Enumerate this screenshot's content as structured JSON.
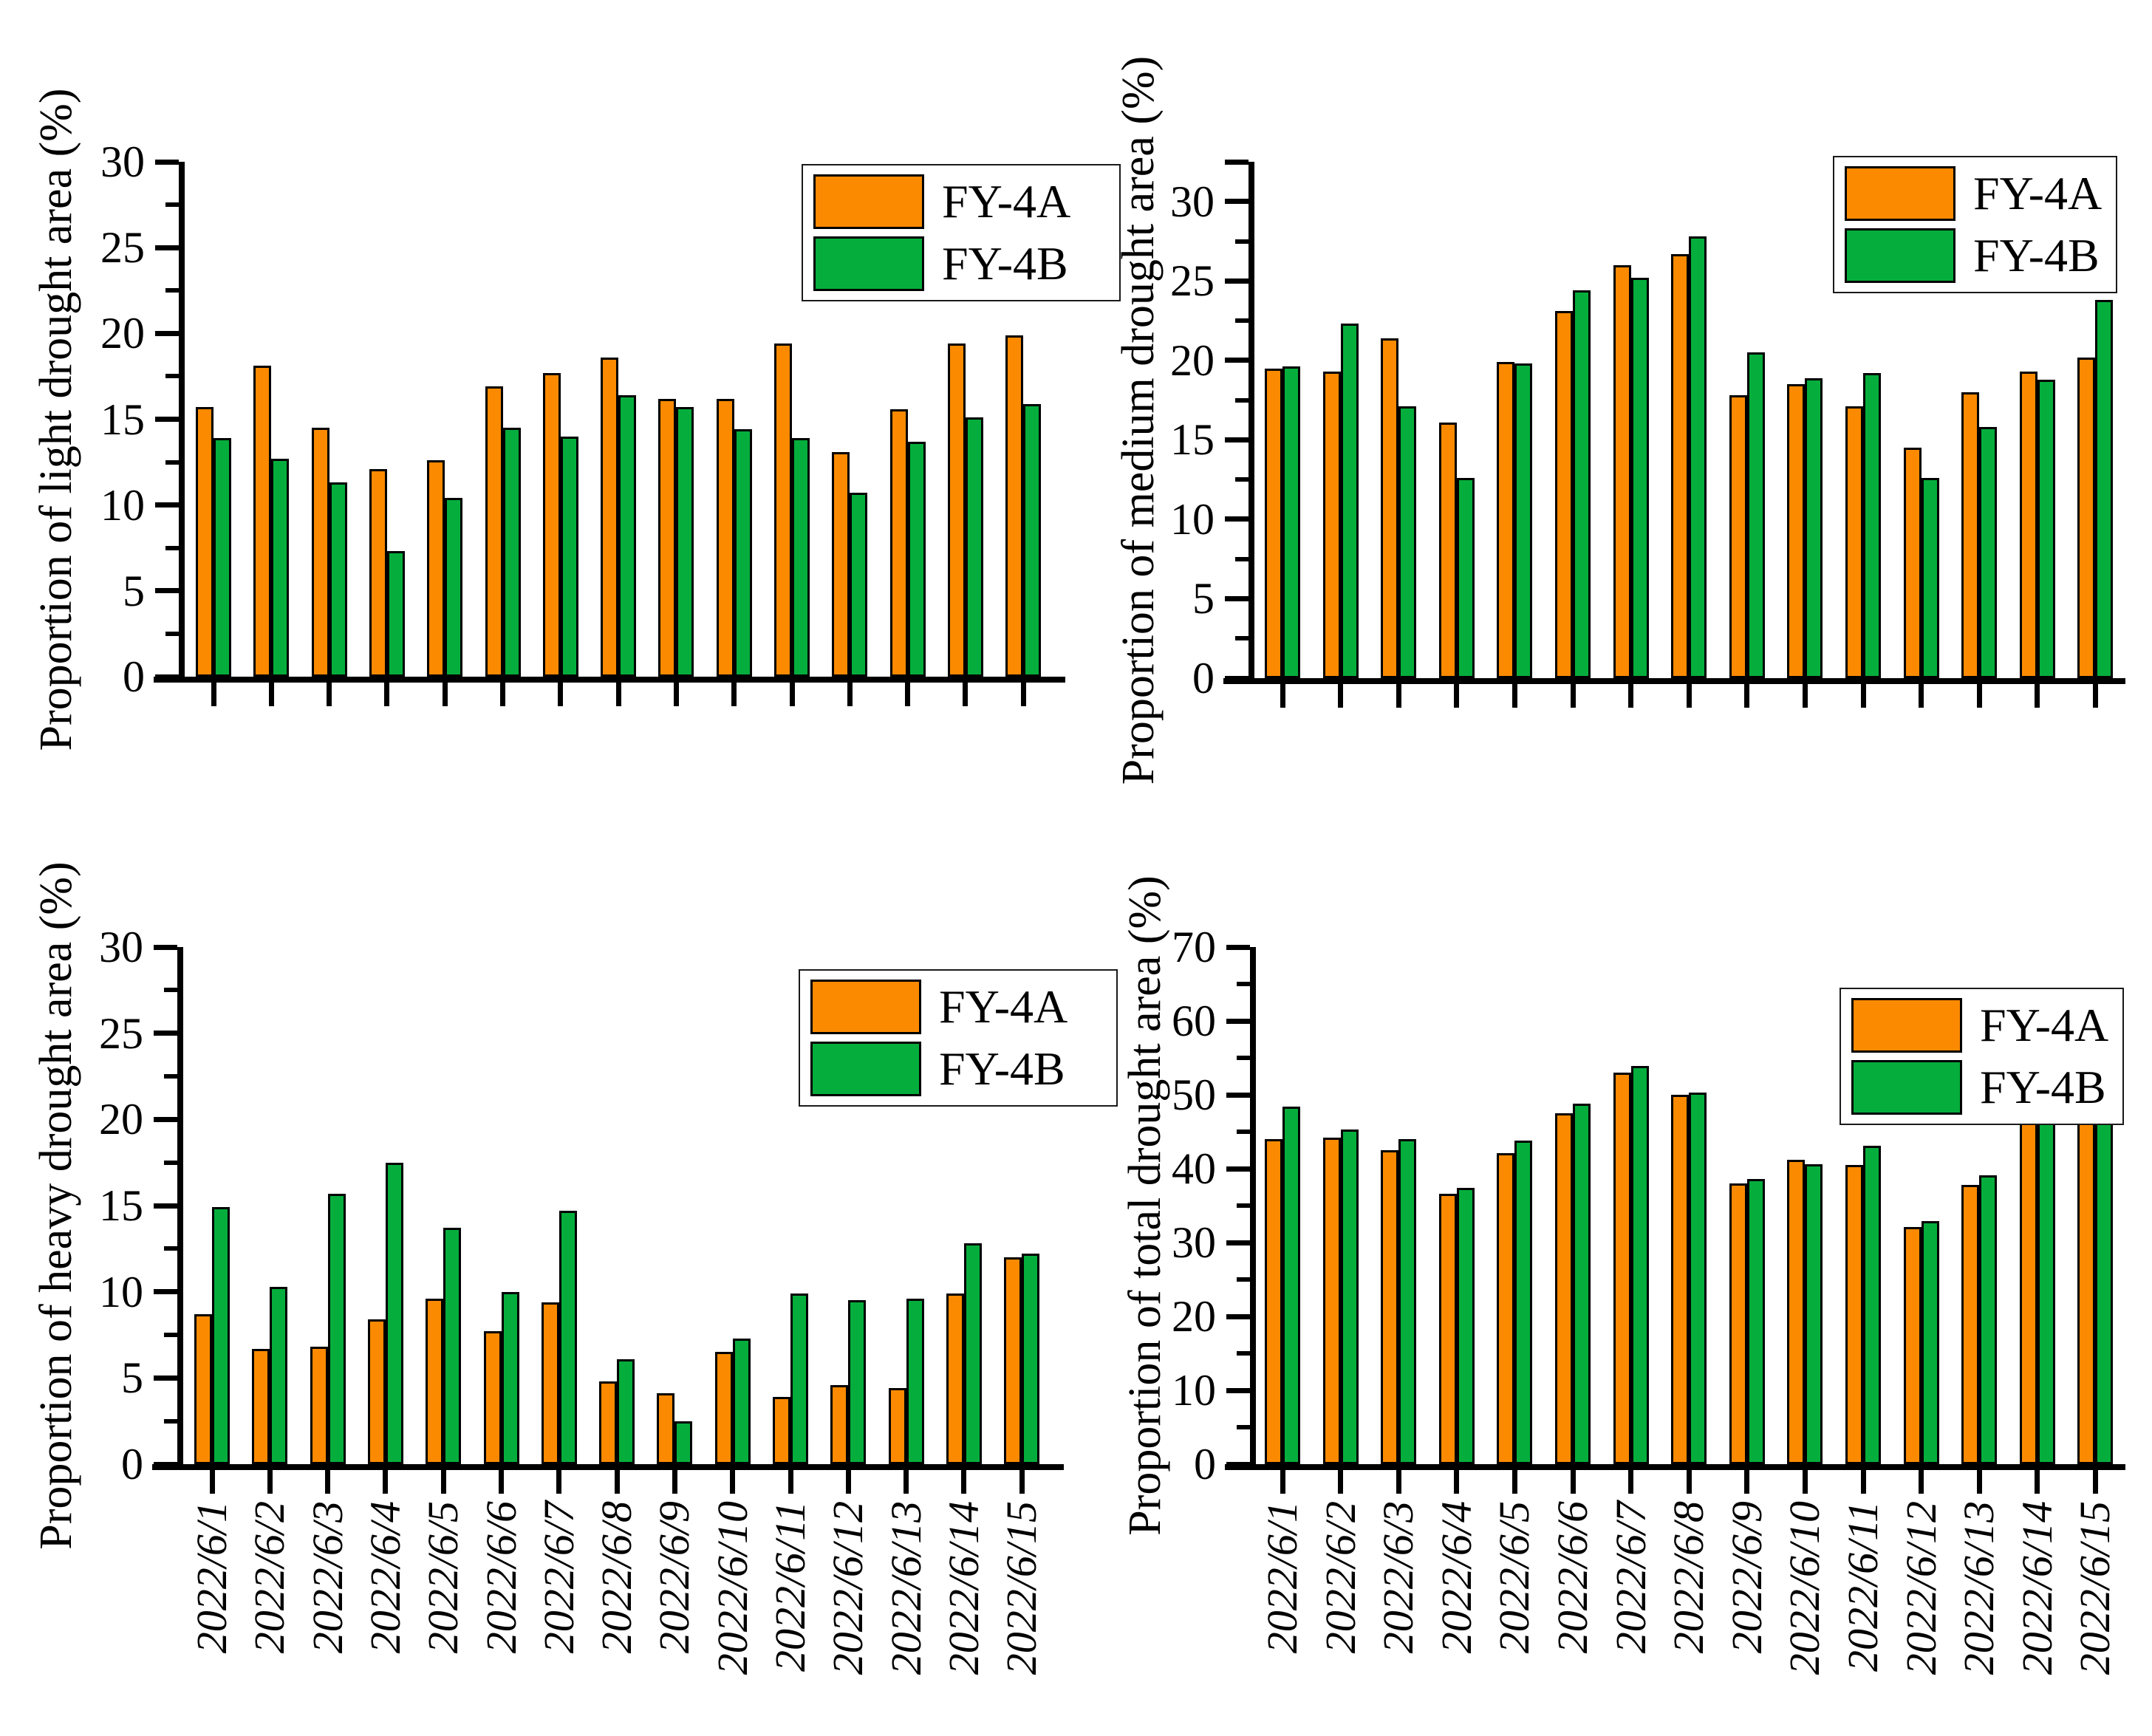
{
  "figure": {
    "legend": {
      "position": "top-right",
      "items": [
        {
          "label": "FY-4A",
          "color": "#FB8A00"
        },
        {
          "label": "FY-4B",
          "color": "#05AE3C"
        }
      ]
    }
  },
  "chart_data": [
    {
      "type": "bar",
      "title": "",
      "xlabel": "",
      "ylabel": "Proportion of light drought area (%)",
      "ylim": [
        0,
        30
      ],
      "yticks": [
        0,
        5,
        10,
        15,
        20,
        25,
        30
      ],
      "minor_tick_step": 2.5,
      "grid": false,
      "legend_position": "top-right",
      "x_tick_labels_visible": false,
      "categories": [
        "2022/6/1",
        "2022/6/2",
        "2022/6/3",
        "2022/6/4",
        "2022/6/5",
        "2022/6/6",
        "2022/6/7",
        "2022/6/8",
        "2022/6/9",
        "2022/6/10",
        "2022/6/11",
        "2022/6/12",
        "2022/6/13",
        "2022/6/14",
        "2022/6/15"
      ],
      "series": [
        {
          "name": "FY-4A",
          "color": "#FB8A00",
          "values": [
            15.7,
            18.1,
            14.5,
            12.1,
            12.6,
            16.9,
            17.7,
            18.6,
            16.2,
            16.2,
            19.4,
            13.1,
            15.6,
            19.4,
            19.9
          ]
        },
        {
          "name": "FY-4B",
          "color": "#05AE3C",
          "values": [
            13.9,
            12.7,
            11.3,
            7.3,
            10.4,
            14.5,
            14.0,
            16.4,
            15.7,
            14.4,
            13.9,
            10.7,
            13.7,
            15.1,
            15.9
          ]
        }
      ]
    },
    {
      "type": "bar",
      "title": "",
      "xlabel": "",
      "ylabel": "Proportion of medium drought area (%)",
      "ylim": [
        0,
        32.5
      ],
      "yticks": [
        0,
        5,
        10,
        15,
        20,
        25,
        30
      ],
      "minor_tick_step": 2.5,
      "grid": false,
      "legend_position": "top-right",
      "x_tick_labels_visible": false,
      "categories": [
        "2022/6/1",
        "2022/6/2",
        "2022/6/3",
        "2022/6/4",
        "2022/6/5",
        "2022/6/6",
        "2022/6/7",
        "2022/6/8",
        "2022/6/9",
        "2022/6/10",
        "2022/6/11",
        "2022/6/12",
        "2022/6/13",
        "2022/6/14",
        "2022/6/15"
      ],
      "series": [
        {
          "name": "FY-4A",
          "color": "#FB8A00",
          "values": [
            19.5,
            19.3,
            21.4,
            16.1,
            19.9,
            23.1,
            26.0,
            26.7,
            17.8,
            18.5,
            17.1,
            14.5,
            18.0,
            19.3,
            20.2
          ]
        },
        {
          "name": "FY-4B",
          "color": "#05AE3C",
          "values": [
            19.6,
            22.3,
            17.1,
            12.6,
            19.8,
            24.4,
            25.2,
            27.8,
            20.5,
            18.9,
            19.2,
            12.6,
            15.8,
            18.8,
            23.8
          ]
        }
      ]
    },
    {
      "type": "bar",
      "title": "",
      "xlabel": "",
      "ylabel": "Proportion of heavy drought area (%)",
      "ylim": [
        0,
        30
      ],
      "yticks": [
        0,
        5,
        10,
        15,
        20,
        25,
        30
      ],
      "minor_tick_step": 2.5,
      "grid": false,
      "legend_position": "top-right",
      "x_tick_labels_visible": true,
      "categories": [
        "2022/6/1",
        "2022/6/2",
        "2022/6/3",
        "2022/6/4",
        "2022/6/5",
        "2022/6/6",
        "2022/6/7",
        "2022/6/8",
        "2022/6/9",
        "2022/6/10",
        "2022/6/11",
        "2022/6/12",
        "2022/6/13",
        "2022/6/14",
        "2022/6/15"
      ],
      "series": [
        {
          "name": "FY-4A",
          "color": "#FB8A00",
          "values": [
            8.7,
            6.7,
            6.8,
            8.4,
            9.6,
            7.7,
            9.4,
            4.8,
            4.1,
            6.5,
            3.9,
            4.6,
            4.4,
            9.9,
            12.0
          ]
        },
        {
          "name": "FY-4B",
          "color": "#05AE3C",
          "values": [
            14.9,
            10.3,
            15.7,
            17.5,
            13.7,
            10.0,
            14.7,
            6.1,
            2.5,
            7.3,
            9.9,
            9.5,
            9.6,
            12.8,
            12.2
          ]
        }
      ]
    },
    {
      "type": "bar",
      "title": "",
      "xlabel": "",
      "ylabel": "Proportion of total drought area (%)",
      "ylim": [
        0,
        70
      ],
      "yticks": [
        0,
        10,
        20,
        30,
        40,
        50,
        60,
        70
      ],
      "minor_tick_step": 5,
      "grid": false,
      "legend_position": "top-right",
      "x_tick_labels_visible": true,
      "categories": [
        "2022/6/1",
        "2022/6/2",
        "2022/6/3",
        "2022/6/4",
        "2022/6/5",
        "2022/6/6",
        "2022/6/7",
        "2022/6/8",
        "2022/6/9",
        "2022/6/10",
        "2022/6/11",
        "2022/6/12",
        "2022/6/13",
        "2022/6/14",
        "2022/6/15"
      ],
      "series": [
        {
          "name": "FY-4A",
          "color": "#FB8A00",
          "values": [
            44.0,
            44.2,
            42.5,
            36.6,
            42.1,
            47.5,
            53.0,
            50.0,
            38.0,
            41.2,
            40.5,
            32.1,
            37.8,
            48.6,
            52.1
          ]
        },
        {
          "name": "FY-4B",
          "color": "#05AE3C",
          "values": [
            48.4,
            45.3,
            44.0,
            37.4,
            43.8,
            48.8,
            53.9,
            50.3,
            38.6,
            40.6,
            43.1,
            32.9,
            39.1,
            46.8,
            51.9
          ]
        }
      ]
    }
  ]
}
